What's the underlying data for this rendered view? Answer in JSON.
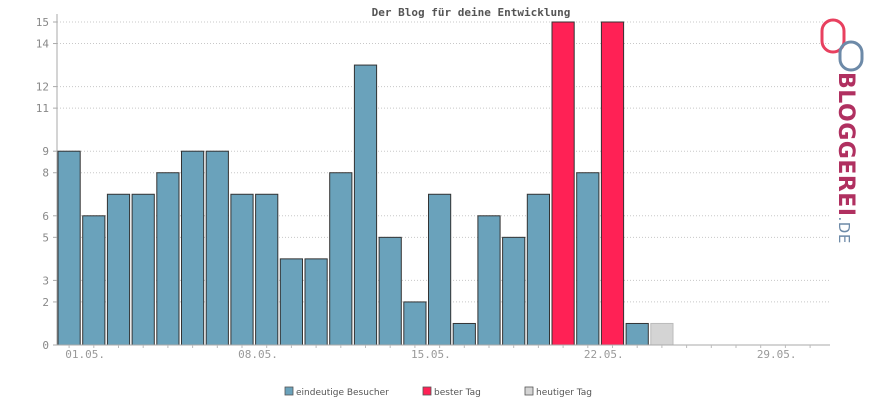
{
  "chart_data": {
    "type": "bar",
    "title": "Der Blog für deine Entwicklung",
    "xlabel": "",
    "ylabel": "",
    "ylim": [
      0,
      15
    ],
    "yticks": [
      0,
      2,
      3,
      5,
      6,
      8,
      9,
      11,
      12,
      14,
      15
    ],
    "xticks": [
      {
        "index": 0,
        "label": "01.05."
      },
      {
        "index": 7,
        "label": "08.05."
      },
      {
        "index": 14,
        "label": "15.05."
      },
      {
        "index": 21,
        "label": "22.05."
      },
      {
        "index": 28,
        "label": "29.05."
      }
    ],
    "day_count": 31,
    "values": [
      9,
      6,
      7,
      7,
      8,
      9,
      9,
      7,
      7,
      4,
      4,
      8,
      13,
      5,
      2,
      7,
      1,
      6,
      5,
      7,
      15,
      8,
      15,
      1,
      1
    ],
    "kinds": [
      "v",
      "v",
      "v",
      "v",
      "v",
      "v",
      "v",
      "v",
      "v",
      "v",
      "v",
      "v",
      "v",
      "v",
      "v",
      "v",
      "v",
      "v",
      "v",
      "v",
      "b",
      "v",
      "b",
      "v",
      "t"
    ],
    "legend": [
      {
        "key": "v",
        "label": "eindeutige Besucher",
        "color": "#6aa2bb"
      },
      {
        "key": "b",
        "label": "bester Tag",
        "color": "#ff2155"
      },
      {
        "key": "t",
        "label": "heutiger Tag",
        "color": "#d4d4d4"
      }
    ],
    "grid": true
  },
  "logo": {
    "text_main": "BLOGGEREI",
    "text_suffix": ".DE",
    "color_main": "#b03060",
    "color_suffix": "#6d8aa8"
  }
}
